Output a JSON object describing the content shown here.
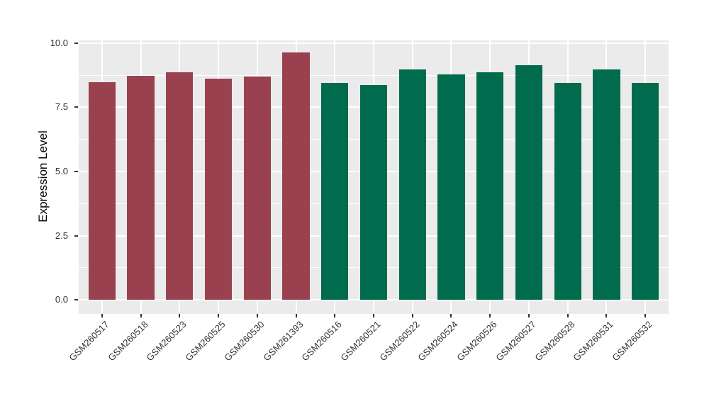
{
  "chart_data": {
    "type": "bar",
    "title": "",
    "xlabel": "",
    "ylabel": "Expression Level",
    "categories": [
      "GSM260517",
      "GSM260518",
      "GSM260523",
      "GSM260525",
      "GSM260530",
      "GSM261393",
      "GSM260516",
      "GSM260521",
      "GSM260522",
      "GSM260524",
      "GSM260526",
      "GSM260527",
      "GSM260528",
      "GSM260531",
      "GSM260532"
    ],
    "values": [
      8.47,
      8.72,
      8.85,
      8.61,
      8.69,
      9.63,
      8.44,
      8.36,
      8.96,
      8.78,
      8.86,
      9.13,
      8.45,
      8.96,
      8.44
    ],
    "groups": [
      "red",
      "red",
      "red",
      "red",
      "red",
      "red",
      "green",
      "green",
      "green",
      "green",
      "green",
      "green",
      "green",
      "green",
      "green"
    ],
    "group_colors": {
      "red": "#9A4150",
      "green": "#006B4D"
    },
    "ytick_labels": [
      "0.0",
      "2.5",
      "5.0",
      "7.5",
      "10.0"
    ],
    "ytick_values": [
      0,
      2.5,
      5,
      7.5,
      10
    ],
    "yminor_values": [
      1.25,
      3.75,
      6.25,
      8.75
    ],
    "ylim": [
      -0.54,
      10.1
    ],
    "grid": "on",
    "legend": "none",
    "panel_background": "#EBEBEB",
    "grid_color": "#FFFFFF",
    "tick_color": "#333333",
    "axis_text_color": "#333333",
    "axis_title_color": "#000000",
    "bar_width_fraction": 0.7
  }
}
